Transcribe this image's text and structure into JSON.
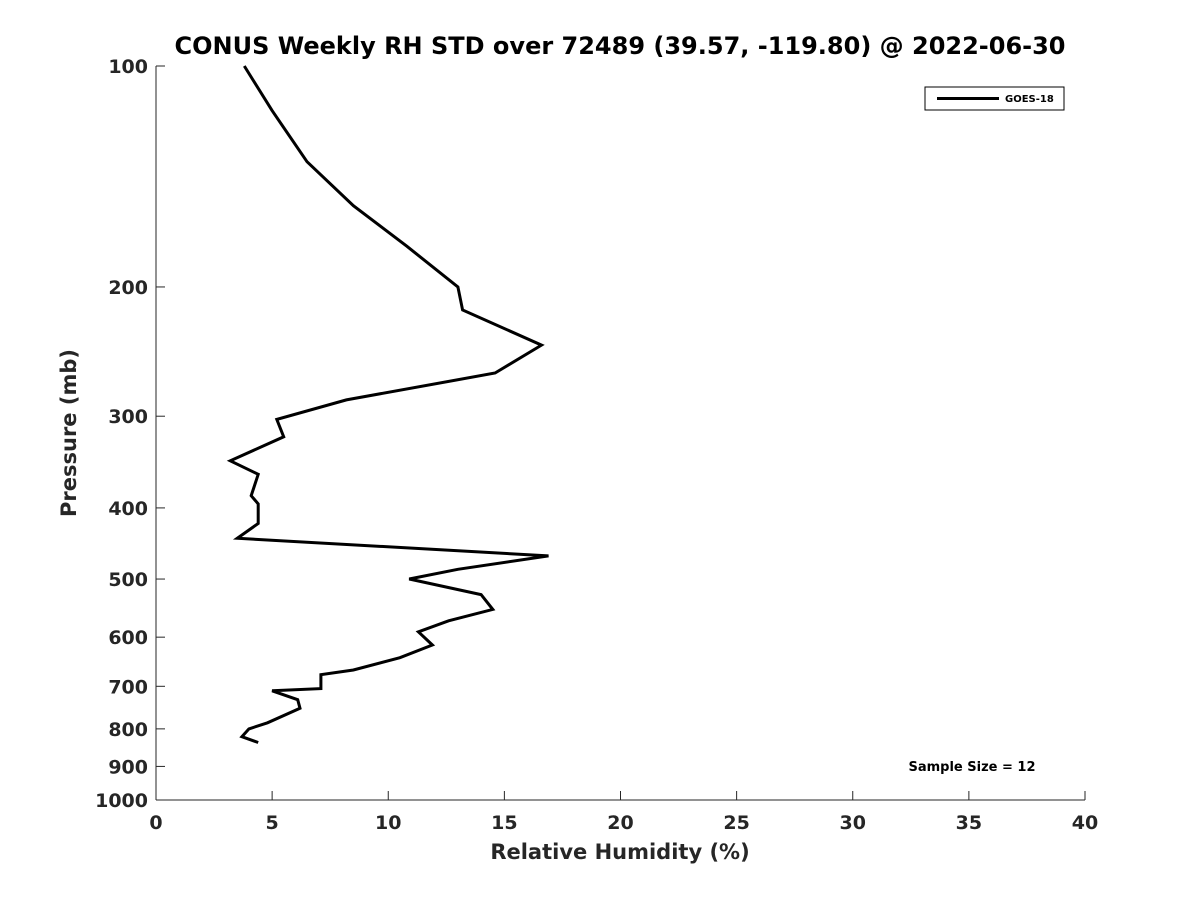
{
  "chart_data": {
    "type": "line",
    "title": "CONUS Weekly RH STD over 72489 (39.57, -119.80) @ 2022-06-30",
    "xlabel": "Relative Humidity (%)",
    "ylabel": "Pressure (mb)",
    "xlim": [
      0,
      40
    ],
    "ylim": [
      100,
      1000
    ],
    "y_scale": "log",
    "y_direction": "reversed",
    "xticks": [
      0,
      5,
      10,
      15,
      20,
      25,
      30,
      35,
      40
    ],
    "xtick_labels": [
      "0",
      "5",
      "10",
      "15",
      "20",
      "25",
      "30",
      "35",
      "40"
    ],
    "yticks": [
      100,
      200,
      300,
      400,
      500,
      600,
      700,
      800,
      900,
      1000
    ],
    "ytick_labels": [
      "100",
      "200",
      "300",
      "400",
      "500",
      "600",
      "700",
      "800",
      "900",
      "1000"
    ],
    "grid": false,
    "legend_position": "top-right",
    "series": [
      {
        "name": "GOES-18",
        "color": "#000000",
        "x": [
          3.8,
          5.0,
          6.5,
          8.5,
          10.8,
          13.0,
          13.2,
          16.6,
          14.6,
          8.2,
          5.2,
          5.5,
          3.2,
          4.4,
          4.1,
          4.4,
          4.4,
          3.5,
          16.9,
          13.0,
          10.9,
          14.0,
          14.5,
          12.6,
          11.3,
          11.9,
          10.5,
          8.5,
          7.1,
          7.1,
          5.0,
          6.1,
          6.2,
          4.8,
          4.0,
          3.7,
          4.4
        ],
        "y": [
          100,
          115,
          135,
          155,
          176,
          200,
          215,
          240,
          262,
          285,
          303,
          320,
          345,
          360,
          385,
          395,
          420,
          440,
          465,
          485,
          500,
          525,
          550,
          570,
          590,
          615,
          640,
          665,
          675,
          705,
          710,
          730,
          750,
          785,
          800,
          820,
          835
        ]
      }
    ],
    "annotations": [
      "Sample Size = 12"
    ]
  }
}
